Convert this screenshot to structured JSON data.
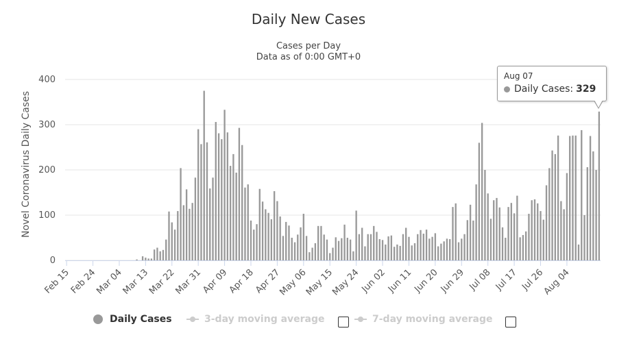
{
  "chart_data": {
    "type": "bar",
    "title": "Daily New Cases",
    "subtitle_line1": "Cases per Day",
    "subtitle_line2": "Data as of 0:00 GMT+0",
    "ylabel": "Novel Coronavirus Daily Cases",
    "xlabel": "",
    "ylim": [
      0,
      400
    ],
    "yticks": [
      0,
      100,
      200,
      300,
      400
    ],
    "grid": true,
    "start_date": "Feb 15",
    "xtick_labels": [
      "Feb 15",
      "Feb 24",
      "Mar 04",
      "Mar 13",
      "Mar 22",
      "Mar 31",
      "Apr 09",
      "Apr 18",
      "Apr 27",
      "May 06",
      "May 15",
      "May 24",
      "Jun 02",
      "Jun 11",
      "Jun 20",
      "Jun 29",
      "Jul 08",
      "Jul 17",
      "Jul 26",
      "Aug 04"
    ],
    "xtick_interval_days": 9,
    "series": [
      {
        "name": "Daily Cases",
        "color": "#999999",
        "values": [
          0,
          0,
          0,
          0,
          0,
          0,
          0,
          0,
          0,
          0,
          0,
          0,
          0,
          0,
          0,
          0,
          0,
          0,
          0,
          0,
          0,
          0,
          0,
          0,
          2,
          0,
          9,
          6,
          4,
          4,
          24,
          28,
          20,
          23,
          46,
          108,
          84,
          68,
          109,
          204,
          122,
          157,
          114,
          127,
          183,
          290,
          257,
          375,
          261,
          159,
          183,
          306,
          281,
          268,
          333,
          283,
          209,
          235,
          194,
          293,
          255,
          161,
          168,
          88,
          68,
          80,
          158,
          130,
          113,
          105,
          91,
          153,
          131,
          97,
          54,
          85,
          77,
          50,
          40,
          57,
          73,
          103,
          54,
          18,
          28,
          38,
          76,
          76,
          57,
          46,
          16,
          28,
          51,
          43,
          49,
          79,
          50,
          46,
          20,
          110,
          58,
          72,
          31,
          58,
          58,
          76,
          63,
          47,
          45,
          35,
          53,
          55,
          30,
          35,
          32,
          58,
          72,
          52,
          33,
          38,
          58,
          67,
          59,
          68,
          48,
          52,
          60,
          31,
          37,
          42,
          48,
          47,
          118,
          126,
          40,
          48,
          58,
          89,
          123,
          88,
          168,
          260,
          304,
          200,
          148,
          92,
          133,
          138,
          117,
          73,
          50,
          118,
          127,
          104,
          143,
          51,
          56,
          64,
          103,
          133,
          135,
          126,
          109,
          90,
          166,
          204,
          243,
          235,
          276,
          131,
          113,
          193,
          275,
          276,
          276,
          35,
          288,
          100,
          206,
          275,
          241,
          200,
          329
        ]
      },
      {
        "name": "3-day moving average",
        "visible": false,
        "color": "#cccccc"
      },
      {
        "name": "7-day moving average",
        "visible": false,
        "color": "#cccccc"
      }
    ],
    "legend": [
      "Daily Cases",
      "3-day moving average",
      "7-day moving average"
    ],
    "tooltip": {
      "date": "Aug 07",
      "label": "Daily Cases:",
      "value": "329"
    }
  }
}
